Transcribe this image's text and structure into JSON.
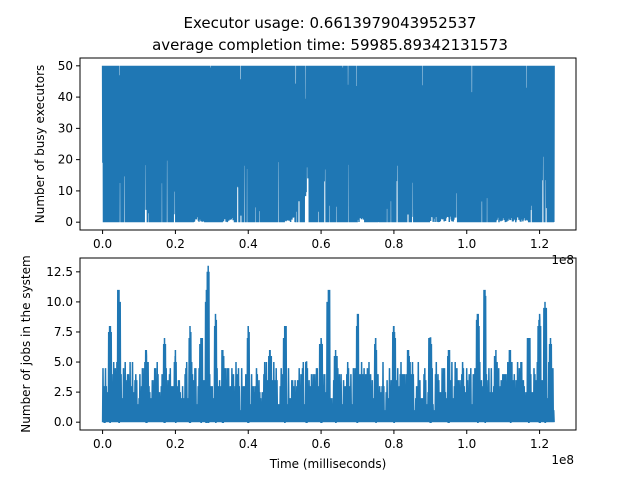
{
  "figure": {
    "title_line1": "Executor usage: 0.6613979043952537",
    "title_line2": "average completion time: 59985.89342131573"
  },
  "chart_data": [
    {
      "type": "line",
      "xlabel": "",
      "ylabel": "Number of busy executors",
      "x_multiplier_label": "1e8",
      "xlim": [
        -0.062,
        1.3
      ],
      "ylim": [
        -2.5,
        52.5
      ],
      "xticks": [
        0.0,
        0.2,
        0.4,
        0.6,
        0.8,
        1.0,
        1.2
      ],
      "xtick_labels": [
        "0.0",
        "0.2",
        "0.4",
        "0.6",
        "0.8",
        "1.0",
        "1.2"
      ],
      "yticks": [
        0,
        10,
        20,
        30,
        40,
        50
      ],
      "ytick_labels": [
        "0",
        "10",
        "20",
        "30",
        "40",
        "50"
      ],
      "series_color": "#1f77b4",
      "x_extent": [
        0.0,
        1.24
      ],
      "y_extent": [
        0,
        50
      ],
      "mode": "dense-oscillation",
      "gaps": [
        [
          0.25,
          0.28
        ],
        [
          0.33,
          0.36
        ],
        [
          0.5,
          0.53
        ],
        [
          0.7,
          0.72
        ],
        [
          0.9,
          0.97
        ],
        [
          1.08,
          1.17
        ]
      ]
    },
    {
      "type": "line",
      "xlabel": "Time (milliseconds)",
      "ylabel": "Number of jobs in the system",
      "x_multiplier_label": "1e8",
      "xlim": [
        -0.062,
        1.3
      ],
      "ylim": [
        -0.65,
        13.65
      ],
      "xticks": [
        0.0,
        0.2,
        0.4,
        0.6,
        0.8,
        1.0,
        1.2
      ],
      "xtick_labels": [
        "0.0",
        "0.2",
        "0.4",
        "0.6",
        "0.8",
        "1.0",
        "1.2"
      ],
      "yticks": [
        0.0,
        2.5,
        5.0,
        7.5,
        10.0,
        12.5
      ],
      "ytick_labels": [
        "0.0",
        "2.5",
        "5.0",
        "7.5",
        "10.0",
        "12.5"
      ],
      "series_color": "#1f77b4",
      "x_extent": [
        0.0,
        1.24
      ],
      "y_extent": [
        0,
        13
      ],
      "mode": "spiky",
      "peaks": [
        [
          0.005,
          3
        ],
        [
          0.02,
          8
        ],
        [
          0.045,
          11
        ],
        [
          0.12,
          6
        ],
        [
          0.17,
          7
        ],
        [
          0.2,
          6
        ],
        [
          0.24,
          8
        ],
        [
          0.27,
          7
        ],
        [
          0.285,
          11
        ],
        [
          0.29,
          13
        ],
        [
          0.31,
          9
        ],
        [
          0.33,
          6
        ],
        [
          0.4,
          8
        ],
        [
          0.46,
          6
        ],
        [
          0.5,
          8
        ],
        [
          0.56,
          5
        ],
        [
          0.6,
          7
        ],
        [
          0.62,
          11
        ],
        [
          0.64,
          6
        ],
        [
          0.7,
          9
        ],
        [
          0.75,
          7
        ],
        [
          0.8,
          8
        ],
        [
          0.84,
          6
        ],
        [
          0.9,
          7
        ],
        [
          0.95,
          6
        ],
        [
          1.03,
          9
        ],
        [
          1.05,
          11
        ],
        [
          1.08,
          6
        ],
        [
          1.12,
          6
        ],
        [
          1.17,
          7
        ],
        [
          1.2,
          9
        ],
        [
          1.215,
          10
        ],
        [
          1.23,
          7
        ]
      ]
    }
  ]
}
